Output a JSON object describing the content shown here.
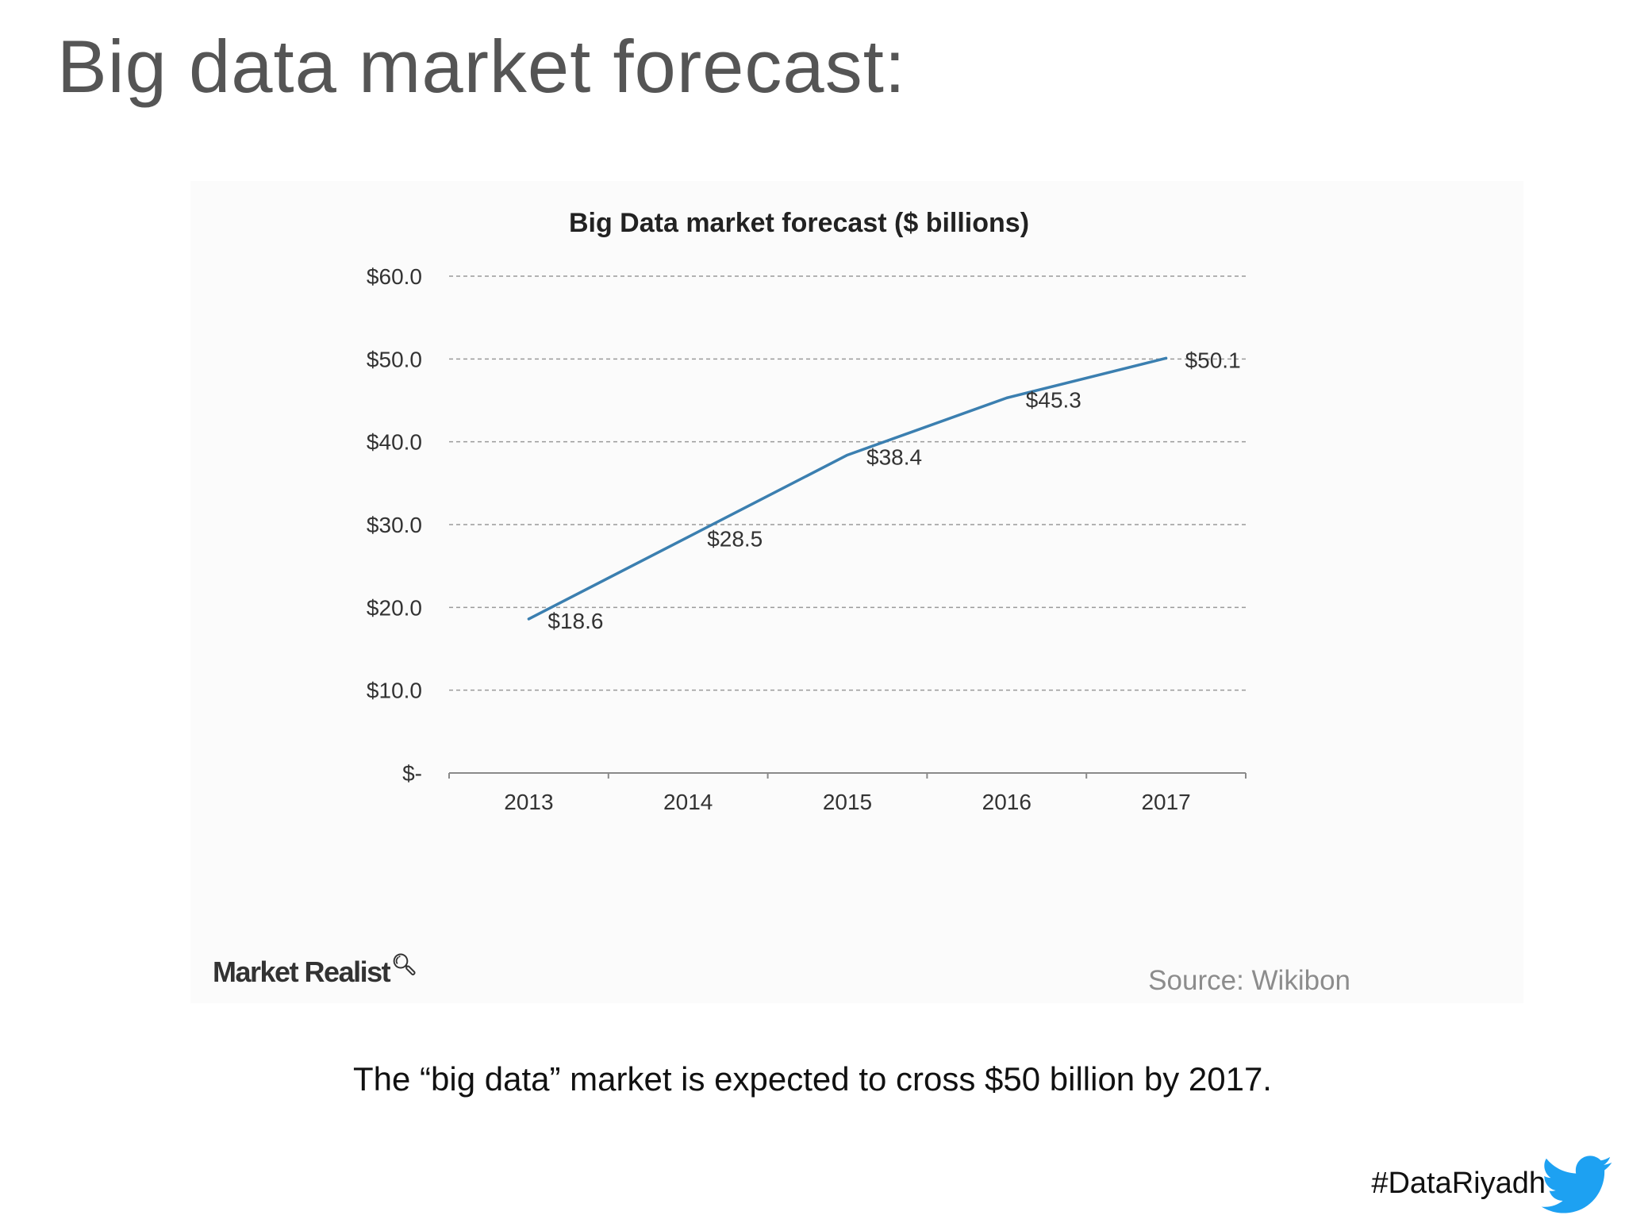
{
  "slide": {
    "title": "Big data market forecast:",
    "caption": "The “big data” market is expected to cross $50 billion by 2017.",
    "hashtag": "#DataRiyadh",
    "hashtag_icon": "twitter-bird-icon"
  },
  "figure": {
    "brand": "Market Realist",
    "brand_icon": "magnifier-icon",
    "source": "Source: Wikibon"
  },
  "chart_data": {
    "type": "line",
    "title": "Big Data market forecast ($ billions)",
    "xlabel": "",
    "ylabel": "",
    "categories": [
      "2013",
      "2014",
      "2015",
      "2016",
      "2017"
    ],
    "series": [
      {
        "values": [
          18.6,
          28.5,
          38.4,
          45.3,
          50.1
        ]
      }
    ],
    "data_labels": [
      "$18.6",
      "$28.5",
      "$38.4",
      "$45.3",
      "$50.1"
    ],
    "ylim": [
      0,
      60
    ],
    "yticks": [
      0,
      10,
      20,
      30,
      40,
      50,
      60
    ],
    "ytick_labels": [
      "$-",
      "$10.0",
      "$20.0",
      "$30.0",
      "$40.0",
      "$50.0",
      "$60.0"
    ],
    "grid": true,
    "grid_style": "dashed",
    "legend": "none",
    "line_color": "#3b7fb0"
  }
}
